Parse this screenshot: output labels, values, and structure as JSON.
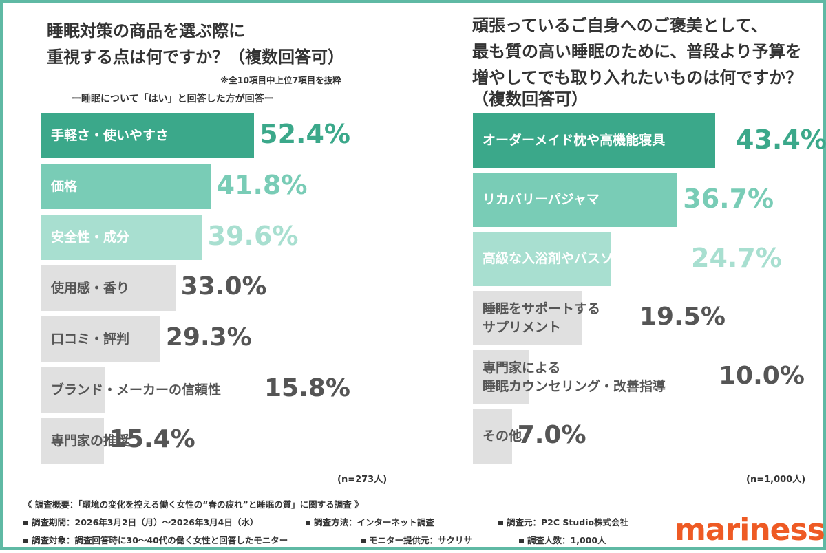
{
  "left": {
    "title_line1": "睡眠対策の商品を選ぶ際に",
    "title_line2": "重視する点は何ですか？（複数回答可）",
    "note": "※全10項目中上位7項目を抜粋",
    "subtitle": "ー睡眠について「はい」と回答した方が回答ー",
    "n_label": "(n=273人)"
  },
  "right": {
    "title_line1": "頑張っているご自身へのご褒美として、",
    "title_line2": "最も質の高い睡眠のために、普段より予算を",
    "title_line3": "増やしてでも取り入れたいものは何ですか？",
    "title_line4": "（複数回答可）",
    "n_label": "(n=1,000人)"
  },
  "footer": {
    "line1": "《 調査概要：「環境の変化を控える働く女性の“春の疲れ”と睡眠の質」に関する調査 》",
    "period": "調査期間：2026年3月2日（月）〜2026年3月4日（水）",
    "method": "調査方法：インターネット調査",
    "source": "調査元：P2C Studio株式会社",
    "target": "調査対象：調査回答時に30〜40代の働く女性と回答したモニター",
    "provider": "モニター提供元：サクリサ",
    "count": "調査人数：1,000人"
  },
  "logo": "mariness",
  "colors": {
    "tier1": "#3ba88a",
    "tier2": "#79ccb6",
    "tier3": "#a8dfd0",
    "gray": "#e0e0e0",
    "text_dark": "#555555",
    "border": "#5fb9a4",
    "logo": "#ee5a24"
  },
  "chart_data": [
    {
      "type": "bar",
      "orientation": "horizontal",
      "categories": [
        "手軽さ・使いやすさ",
        "価格",
        "安全性・成分",
        "使用感・香り",
        "口コミ・評判",
        "ブランド・メーカーの信頼性",
        "専門家の推奨"
      ],
      "values": [
        52.4,
        41.8,
        39.6,
        33.0,
        29.3,
        15.8,
        15.4
      ],
      "value_labels": [
        "52.4%",
        "41.8%",
        "39.6%",
        "33.0%",
        "29.3%",
        "15.8%",
        "15.4%"
      ],
      "tiers": [
        1,
        2,
        3,
        0,
        0,
        0,
        0
      ],
      "unit": "%"
    },
    {
      "type": "bar",
      "orientation": "horizontal",
      "categories": [
        "オーダーメイド枕や高機能寝具",
        "リカバリーパジャマ",
        "高級な入浴剤やバスソルト",
        "睡眠をサポートする\nサプリメント",
        "専門家による\n睡眠カウンセリング・改善指導",
        "その他"
      ],
      "values": [
        43.4,
        36.7,
        24.7,
        19.5,
        10.0,
        7.0
      ],
      "value_labels": [
        "43.4%",
        "36.7%",
        "24.7%",
        "19.5%",
        "10.0%",
        "7.0%"
      ],
      "tiers": [
        1,
        2,
        3,
        0,
        0,
        0
      ],
      "unit": "%"
    }
  ]
}
